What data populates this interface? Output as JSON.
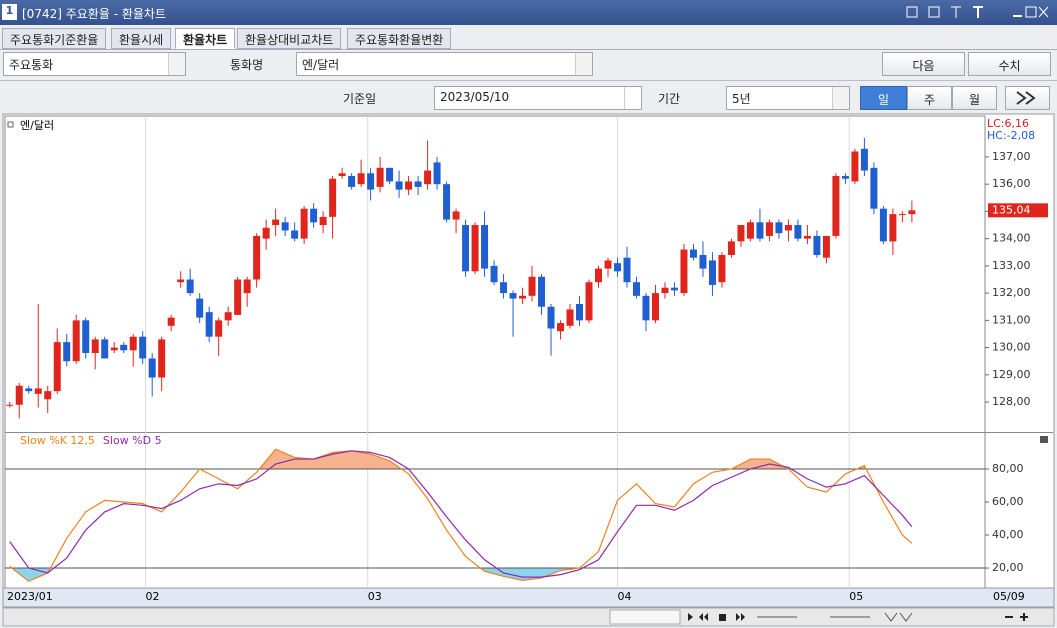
{
  "window": {
    "icon": "1",
    "title": "[0742] 주요환율 - 환율차트"
  },
  "tabs": [
    "주요통화기준환율",
    "환율시세",
    "환율차트",
    "환율상대비교차트",
    "주요통화환율변환"
  ],
  "controls": {
    "group": "주요통화",
    "currency_label": "통화명",
    "currency": "엔/달러",
    "next_button": "다음",
    "values_button": "수치",
    "date_label": "기준일",
    "date": "2023/05/10",
    "period_label": "기간",
    "period": "5년",
    "intervals": [
      "일",
      "주",
      "월"
    ]
  },
  "chart_data": {
    "type": "candlestick",
    "title": "엔/달러",
    "x": [
      0,
      1,
      2,
      3,
      4,
      5,
      6,
      7,
      8,
      9,
      10,
      11,
      12,
      13,
      14,
      15,
      16,
      17,
      18,
      19,
      20,
      21,
      22,
      23,
      24,
      25,
      26,
      27,
      28,
      29,
      30,
      31,
      32,
      33,
      34,
      35,
      36,
      37,
      38,
      39,
      40,
      41,
      42,
      43,
      44,
      45,
      46,
      47,
      48,
      49,
      50,
      51,
      52,
      53,
      54,
      55,
      56,
      57,
      58,
      59,
      60,
      61,
      62,
      63,
      64,
      65,
      66,
      67,
      68,
      69,
      70,
      71,
      72,
      73,
      74,
      75,
      76,
      77,
      78,
      79,
      80,
      81,
      82,
      83,
      84,
      85,
      86,
      87,
      88,
      89,
      90,
      91,
      92,
      93,
      94,
      95
    ],
    "open": [
      127.9,
      127.9,
      128.5,
      128.3,
      128.1,
      128.4,
      130.2,
      129.5,
      131.0,
      129.8,
      130.3,
      129.9,
      130.1,
      129.9,
      130.4,
      129.6,
      128.9,
      130.8,
      132.4,
      132.5,
      131.8,
      131.3,
      130.4,
      131.0,
      131.2,
      132.0,
      132.5,
      134.0,
      134.5,
      134.6,
      134.3,
      134.0,
      135.1,
      134.5,
      134.8,
      136.3,
      136.3,
      136.0,
      136.4,
      135.9,
      136.6,
      136.1,
      135.8,
      136.1,
      136.0,
      136.8,
      136.0,
      134.7,
      134.5,
      132.8,
      134.5,
      133.0,
      132.4,
      132.0,
      131.8,
      131.9,
      132.6,
      131.5,
      130.6,
      130.8,
      131.6,
      131.0,
      132.4,
      132.9,
      133.1,
      133.3,
      132.4,
      131.9,
      131.0,
      132.0,
      132.2,
      132.0,
      133.6,
      133.4,
      133.2,
      132.4,
      133.4,
      133.9,
      134.0,
      134.6,
      134.1,
      134.6,
      134.3,
      134.5,
      134.0,
      134.1,
      133.3,
      134.1,
      136.3,
      136.1,
      137.3,
      136.6,
      135.1,
      133.9,
      134.9,
      134.9
    ],
    "high": [
      128.0,
      128.7,
      128.6,
      131.6,
      128.6,
      130.7,
      130.5,
      131.2,
      131.1,
      130.4,
      130.4,
      130.2,
      130.2,
      130.5,
      130.6,
      129.8,
      130.4,
      131.2,
      132.8,
      132.9,
      132.0,
      131.5,
      131.1,
      131.5,
      132.6,
      132.6,
      134.2,
      134.7,
      135.1,
      134.8,
      134.6,
      135.2,
      135.3,
      135.0,
      136.3,
      136.6,
      136.4,
      136.9,
      136.6,
      137.0,
      136.6,
      136.5,
      136.3,
      136.3,
      137.6,
      137.0,
      136.1,
      135.1,
      134.7,
      134.6,
      135.0,
      133.2,
      132.7,
      132.1,
      132.2,
      133.0,
      132.7,
      131.6,
      131.0,
      131.6,
      131.9,
      132.5,
      133.0,
      133.3,
      133.3,
      133.7,
      132.6,
      132.0,
      132.3,
      132.4,
      132.4,
      133.8,
      133.8,
      133.9,
      133.5,
      133.5,
      134.0,
      134.5,
      134.7,
      135.1,
      134.7,
      134.7,
      134.7,
      134.7,
      134.5,
      134.3,
      134.1,
      136.4,
      136.4,
      137.3,
      137.7,
      136.8,
      135.2,
      135.1,
      135.0,
      135.4
    ],
    "low": [
      127.8,
      127.4,
      128.3,
      127.8,
      127.6,
      128.3,
      129.3,
      129.4,
      129.6,
      129.2,
      129.6,
      129.8,
      129.8,
      129.3,
      129.4,
      128.2,
      128.4,
      130.6,
      132.2,
      131.9,
      130.9,
      130.2,
      129.7,
      130.8,
      131.2,
      131.5,
      132.2,
      133.6,
      134.1,
      134.1,
      133.9,
      133.8,
      134.4,
      134.2,
      134.0,
      136.2,
      135.8,
      135.9,
      135.4,
      135.7,
      136.0,
      135.5,
      135.6,
      135.6,
      135.8,
      135.8,
      134.6,
      134.2,
      132.6,
      132.7,
      132.6,
      132.3,
      131.8,
      130.4,
      131.6,
      131.7,
      131.2,
      129.7,
      130.3,
      130.7,
      130.8,
      130.9,
      132.2,
      132.6,
      132.6,
      132.2,
      131.8,
      130.6,
      130.9,
      131.8,
      131.9,
      131.9,
      133.2,
      132.6,
      131.9,
      132.2,
      133.3,
      133.7,
      133.9,
      133.9,
      133.9,
      134.0,
      133.9,
      133.9,
      133.8,
      133.3,
      133.1,
      134.0,
      136.0,
      136.0,
      136.3,
      134.9,
      133.8,
      133.4,
      134.6,
      134.6
    ],
    "close": [
      127.9,
      128.6,
      128.4,
      128.5,
      128.4,
      130.2,
      129.5,
      131.0,
      129.8,
      130.3,
      129.6,
      130.0,
      129.9,
      130.4,
      129.6,
      128.9,
      130.3,
      131.1,
      132.5,
      132.0,
      131.1,
      130.4,
      131.0,
      131.3,
      132.5,
      132.5,
      134.1,
      134.4,
      134.7,
      134.3,
      134.0,
      135.1,
      134.6,
      134.8,
      136.2,
      136.4,
      135.9,
      136.4,
      135.8,
      136.6,
      136.1,
      135.8,
      136.1,
      135.9,
      136.5,
      136.0,
      134.7,
      135.0,
      132.8,
      134.5,
      132.9,
      132.4,
      132.0,
      131.8,
      131.9,
      132.6,
      131.5,
      130.7,
      130.9,
      131.4,
      131.0,
      132.4,
      132.9,
      133.2,
      132.8,
      132.4,
      131.9,
      131.0,
      132.0,
      132.2,
      132.1,
      133.6,
      133.3,
      132.9,
      132.3,
      133.4,
      133.9,
      134.5,
      134.6,
      134.0,
      134.6,
      134.2,
      134.5,
      134.0,
      134.1,
      133.4,
      134.1,
      136.3,
      136.2,
      137.2,
      136.5,
      135.1,
      133.9,
      134.9,
      134.9,
      135.04
    ],
    "up_color": "#e0261c",
    "down_color": "#1f5fd0",
    "xlim": [
      -0.5,
      102.7
    ],
    "xticks": [
      {
        "value": -0.3,
        "label": "2023/01"
      },
      {
        "value": 14.3,
        "label": "02"
      },
      {
        "value": 37.7,
        "label": "03"
      },
      {
        "value": 64,
        "label": "04"
      },
      {
        "value": 88.4,
        "label": "05"
      }
    ],
    "last_date_label": "05/09",
    "grid": "x",
    "ylim": [
      126.9,
      138.43
    ],
    "yticks": [
      {
        "value": 128,
        "label": "128,00"
      },
      {
        "value": 129,
        "label": "129,00"
      },
      {
        "value": 130,
        "label": "130,00"
      },
      {
        "value": 131,
        "label": "131,00"
      },
      {
        "value": 132,
        "label": "132,00"
      },
      {
        "value": 133,
        "label": "133,00"
      },
      {
        "value": 134,
        "label": "134,00"
      },
      {
        "value": 135,
        "label": "135,00"
      },
      {
        "value": 136,
        "label": "136,00"
      },
      {
        "value": 137,
        "label": "137,00"
      }
    ],
    "last_close_label": "135,04",
    "lc_label": "LC:6,16",
    "hc_label": "HC:-2,08",
    "indicator": {
      "type": "line",
      "x": [
        0,
        2,
        4,
        6,
        8,
        10,
        12,
        14,
        16,
        18,
        20,
        22,
        24,
        26,
        28,
        30,
        32,
        34,
        36,
        38,
        40,
        42,
        44,
        46,
        48,
        50,
        52,
        54,
        56,
        58,
        60,
        62,
        64,
        66,
        68,
        70,
        72,
        74,
        76,
        78,
        80,
        82,
        84,
        86,
        88,
        90,
        92,
        94,
        95
      ],
      "series": [
        {
          "name": "Slow %K 12,5",
          "color": "#f0821e",
          "values": [
            21,
            12,
            17,
            38,
            54,
            61,
            60,
            59,
            54,
            66,
            80,
            74,
            68,
            78,
            92,
            87,
            86,
            90,
            91,
            89,
            85,
            77,
            62,
            43,
            27,
            18,
            15,
            12.5,
            14,
            18.5,
            20,
            30,
            61,
            71,
            59,
            57,
            71,
            78,
            80,
            86,
            86,
            80,
            69,
            66,
            77,
            82,
            60,
            40,
            35
          ]
        },
        {
          "name": "Slow %D 5",
          "color": "#8e2aa8",
          "values": [
            36,
            20,
            17,
            26,
            43,
            54,
            59,
            58,
            56,
            61,
            68,
            71,
            70,
            74,
            83,
            86,
            86,
            89,
            91,
            90,
            87,
            80,
            66,
            51,
            37,
            25,
            17,
            14.5,
            14.5,
            16,
            19,
            25,
            42,
            58,
            58,
            55,
            61,
            70,
            75,
            80,
            83,
            81,
            74,
            69,
            71,
            76,
            64,
            52,
            45
          ]
        }
      ],
      "ylim": [
        7.9,
        101.8
      ],
      "yticks": [
        {
          "value": 20,
          "label": "20,00"
        },
        {
          "value": 40,
          "label": "40,00"
        },
        {
          "value": 60,
          "label": "60,00"
        },
        {
          "value": 80,
          "label": "80,00"
        }
      ],
      "levels": [
        20,
        80
      ],
      "overbought_fill": "#f5b28e",
      "oversold_fill": "#8fd3ef"
    }
  }
}
